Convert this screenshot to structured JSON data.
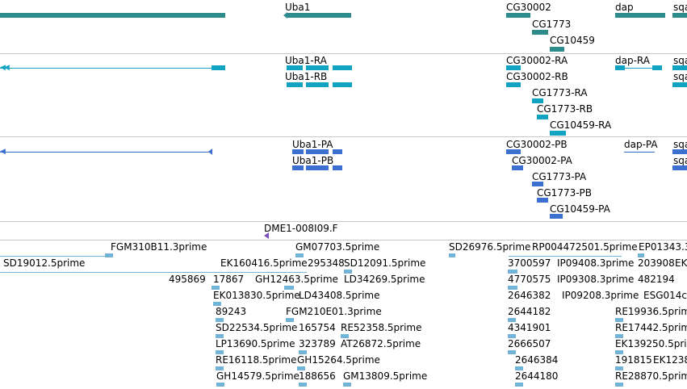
{
  "colors": {
    "gene": "#2e8b8b",
    "transcript": "#13a3c2",
    "protein": "#3b6fd0",
    "est": "#72b3d8",
    "clone_marker": "#7a4fbf"
  },
  "genes": {
    "uba1": "Uba1",
    "cg30002": "CG30002",
    "cg1773": "CG1773",
    "cg10459": "CG10459",
    "dap": "dap",
    "sqa": "sqa"
  },
  "transcripts": {
    "uba1_ra": "Uba1-RA",
    "uba1_rb": "Uba1-RB",
    "cg30002_ra": "CG30002-RA",
    "cg30002_rb": "CG30002-RB",
    "cg1773_ra": "CG1773-RA",
    "cg1773_rb": "CG1773-RB",
    "cg10459_ra": "CG10459-RA",
    "dap_ra": "dap-RA",
    "sqa_1": "sqa",
    "sqa_2": "sqa"
  },
  "proteins": {
    "uba1_pa": "Uba1-PA",
    "uba1_pb": "Uba1-PB",
    "cg30002_pb": "CG30002-PB",
    "cg30002_pa": "CG30002-PA",
    "cg1773_pa": "CG1773-PA",
    "cg1773_pb": "CG1773-PB",
    "cg10459_pa": "CG10459-PA",
    "dap_pa": "dap-PA",
    "sqa_1": "sqa",
    "sqa_2": "sqa"
  },
  "clone": "DME1-008I09.F",
  "ests": {
    "e1": "FGM310B11.3prime",
    "e2": "GM07703.5prime",
    "e3": "SD26976.5prime",
    "e4": "RP004472501.5prime",
    "e5": "EP01343.3",
    "e6": "SD19012.5prime",
    "e7": "EK160416.5prime",
    "e8": "295348",
    "e9": "SD12091.5prime",
    "e10": "3700597",
    "e11": "IP09408.3prime",
    "e12": "203908",
    "e13": "EK",
    "e14": "495869",
    "e15": "17867",
    "e16": "GH12463.5prime",
    "e17": "LD34269.5prime",
    "e18": "4770575",
    "e19": "IP09308.3prime",
    "e20": "482194",
    "e21": "EK013830.5prime",
    "e22": "LD43408.5prime",
    "e23": "2646382",
    "e24": "IP09208.3prime",
    "e25": "ESG014c.",
    "e26": "89243",
    "e27": "FGM210E01.3prime",
    "e28": "2644182",
    "e29": "RE19936.5prime",
    "e30": "SD22534.5prime",
    "e31": "165754",
    "e32": "RE52358.5prime",
    "e33": "4341901",
    "e34": "RE17442.5prime",
    "e35": "LP13690.5prime",
    "e36": "323789",
    "e37": "AT26872.5prime",
    "e38": "2666507",
    "e39": "EK139250.5prime",
    "e40": "RE16118.5prime",
    "e41": "GH15264.5prime",
    "e42": "2646384",
    "e43": "191815",
    "e44": "EK1238",
    "e45": "GH14579.5prime",
    "e46": "188656",
    "e47": "GM13809.5prime",
    "e48": "2644180",
    "e49": "RE28870.5prime"
  }
}
